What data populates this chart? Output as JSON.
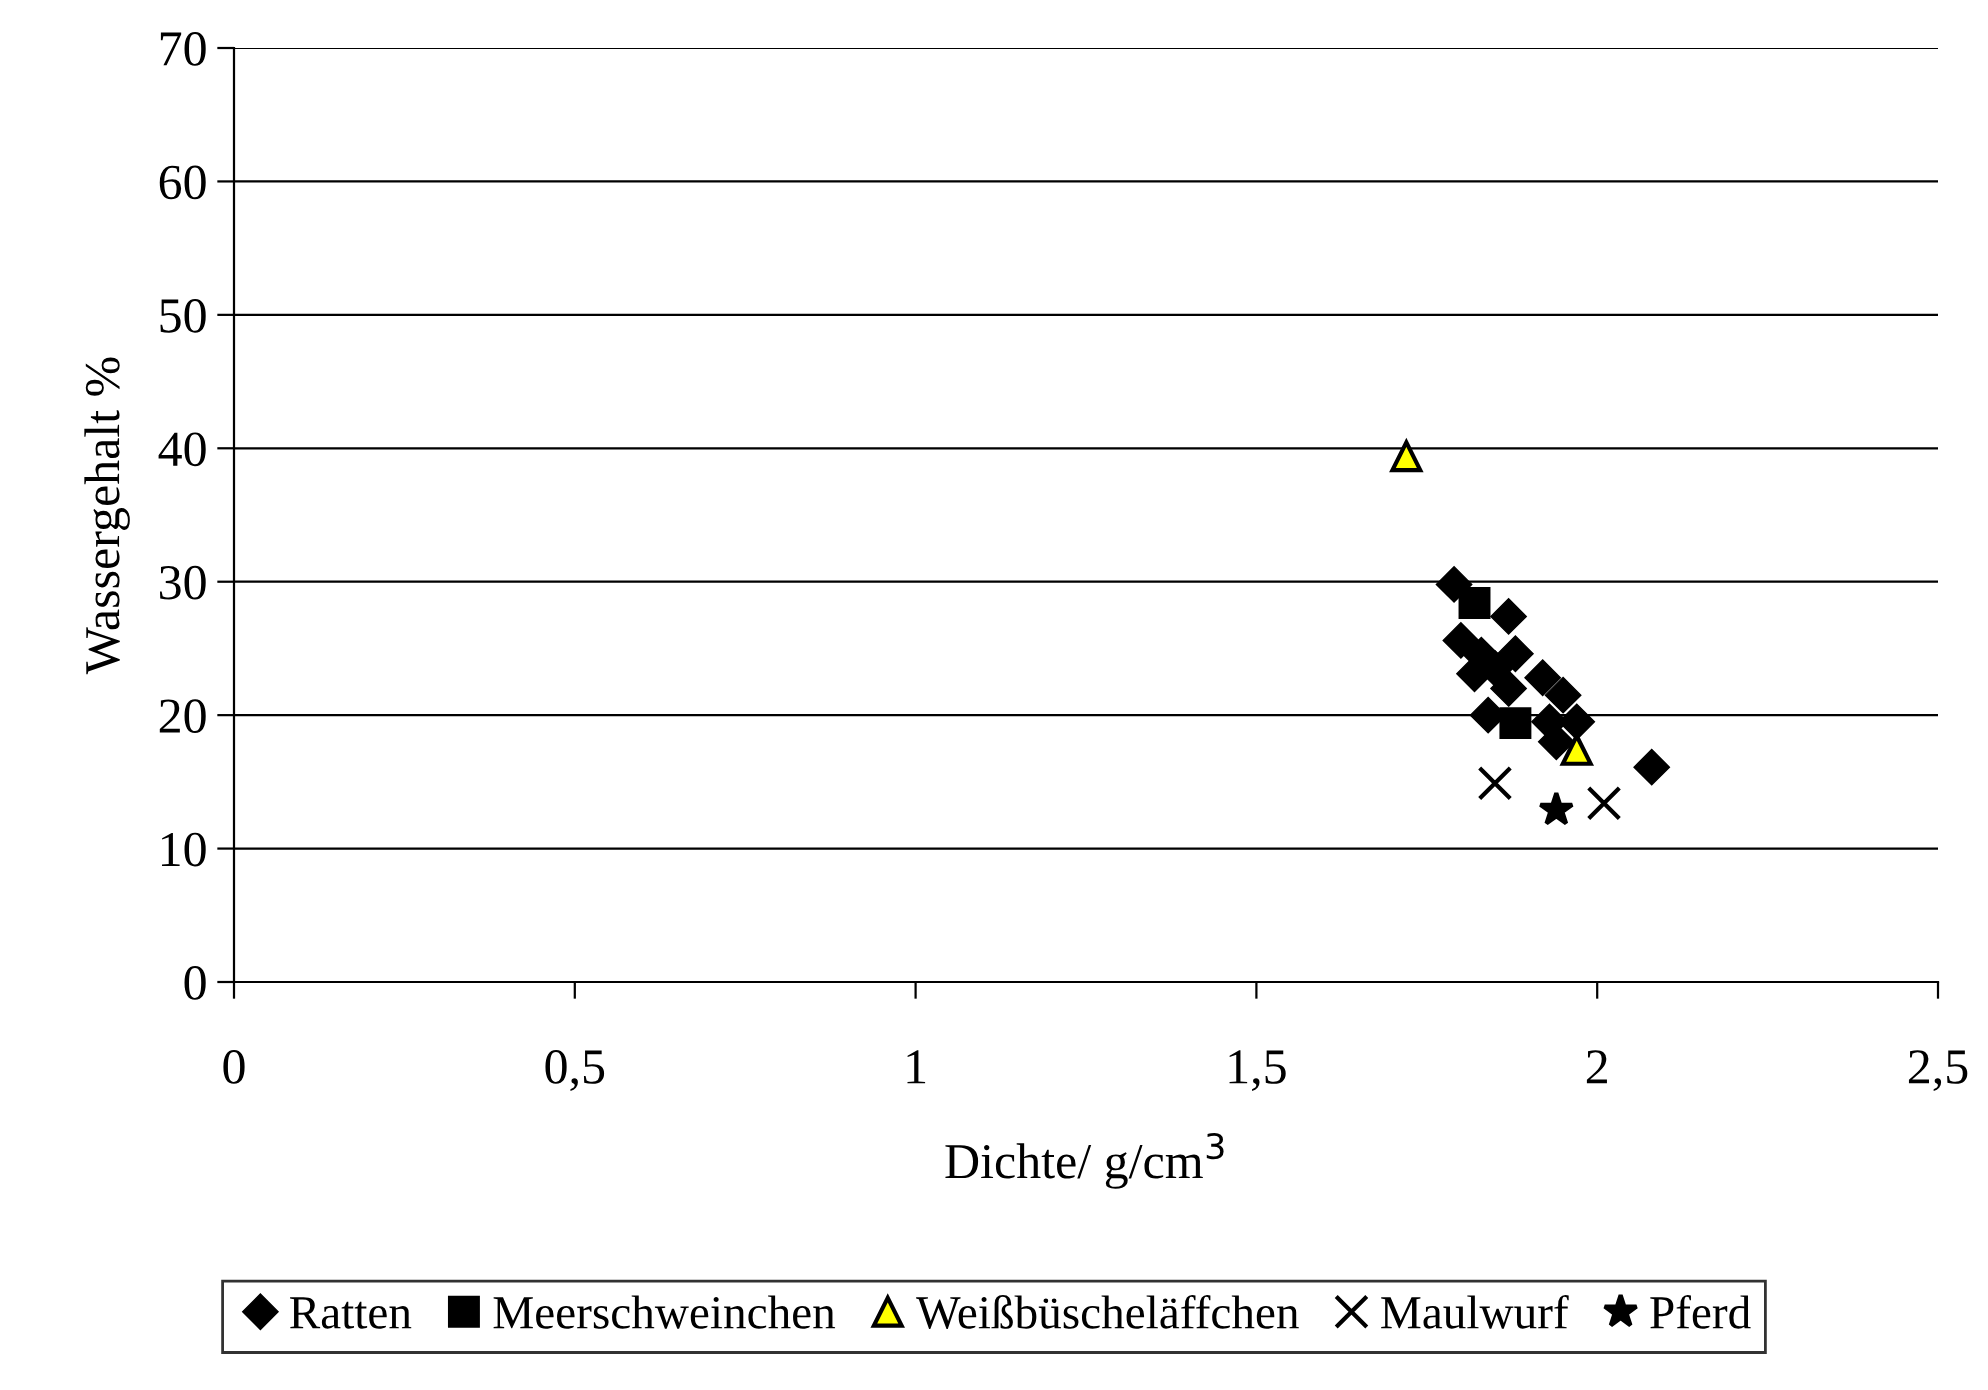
{
  "chart_data": {
    "type": "scatter",
    "xlabel": "Dichte/ g/cm$^{3}$",
    "ylabel": "Wassergehalt %",
    "xlim": [
      0,
      2.5
    ],
    "ylim": [
      0,
      70
    ],
    "xticks": [
      {
        "value": 0,
        "label": "0"
      },
      {
        "value": 0.5,
        "label": "0,5"
      },
      {
        "value": 1,
        "label": "1"
      },
      {
        "value": 1.5,
        "label": "1,5"
      },
      {
        "value": 2,
        "label": "2"
      },
      {
        "value": 2.5,
        "label": "2,5"
      }
    ],
    "yticks": [
      0,
      10,
      20,
      30,
      40,
      50,
      60,
      70
    ],
    "grid": "y",
    "legend": "bottom",
    "series": [
      {
        "name": "Ratten",
        "color": "#000000",
        "marker": "diamond",
        "x": [
          1.79,
          1.87,
          1.8,
          1.83,
          1.85,
          1.82,
          1.88,
          1.84,
          1.87,
          1.92,
          1.95,
          1.93,
          1.97,
          1.94,
          2.08
        ],
        "values": [
          29.8,
          27.4,
          25.6,
          24.5,
          23.5,
          23.1,
          24.6,
          20.0,
          22.0,
          22.8,
          21.5,
          19.5,
          19.5,
          18.0,
          16.1
        ]
      },
      {
        "name": "Meerschweinchen",
        "color": "#000000",
        "marker": "square",
        "x": [
          1.82,
          1.88
        ],
        "values": [
          28.4,
          19.4
        ]
      },
      {
        "name": "Weißbüscheläffchen",
        "color": "#ffff00",
        "marker": "triangle",
        "x": [
          1.72,
          1.97
        ],
        "values": [
          39.4,
          17.4
        ]
      },
      {
        "name": "Maulwurf",
        "color": "#000000",
        "marker": "cross",
        "x": [
          1.85,
          2.01
        ],
        "values": [
          14.9,
          13.4
        ]
      },
      {
        "name": "Pferd",
        "color": "#000000",
        "marker": "star",
        "x": [
          1.94
        ],
        "values": [
          12.9
        ]
      }
    ]
  }
}
